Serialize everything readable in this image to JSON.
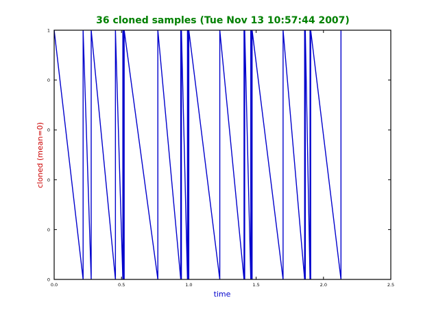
{
  "chart_data": {
    "type": "line",
    "title": "36 cloned samples (Tue Nov 13 10:57:44 2007)",
    "xlabel": "time",
    "ylabel": "cloned (mean=0)",
    "xlim": [
      0.0,
      2.5
    ],
    "ylim": [
      0,
      1
    ],
    "x_ticks": [
      "0.0",
      "0.5",
      "1.0",
      "1.5",
      "2.0",
      "2.5"
    ],
    "y_ticks": [
      "0",
      "0",
      "0",
      "0",
      "0",
      "1"
    ],
    "grid": false,
    "colors": {
      "title": "#008000",
      "xlabel": "#0000cc",
      "ylabel": "#cc0000",
      "series": "#0000cc"
    },
    "series": [
      {
        "x": [
          0.0,
          0.215,
          0.215,
          0.275,
          0.275,
          0.455,
          0.455,
          0.51,
          0.51,
          0.51,
          0.515,
          0.515,
          0.52,
          0.52,
          0.77,
          0.77,
          0.94,
          0.94,
          0.945,
          0.945,
          0.99,
          0.99,
          0.995,
          0.995,
          1.0,
          1.0,
          1.23,
          1.23,
          1.41,
          1.41,
          1.415,
          1.415,
          1.46,
          1.46,
          1.465,
          1.465,
          1.47,
          1.47,
          1.7,
          1.7,
          1.86,
          1.86,
          1.865,
          1.865,
          1.9,
          1.9,
          1.905,
          1.905,
          2.13,
          2.13
        ],
        "y": [
          1,
          0,
          1,
          0,
          1,
          0,
          1,
          0,
          1,
          1,
          0,
          1,
          0,
          1,
          0,
          1,
          0,
          1,
          0,
          1,
          0,
          1,
          0,
          1,
          0,
          1,
          0,
          1,
          0,
          1,
          0,
          1,
          0,
          1,
          0,
          1,
          0,
          1,
          0,
          1,
          0,
          1,
          0,
          1,
          0,
          1,
          0,
          1,
          0,
          1
        ]
      }
    ]
  }
}
